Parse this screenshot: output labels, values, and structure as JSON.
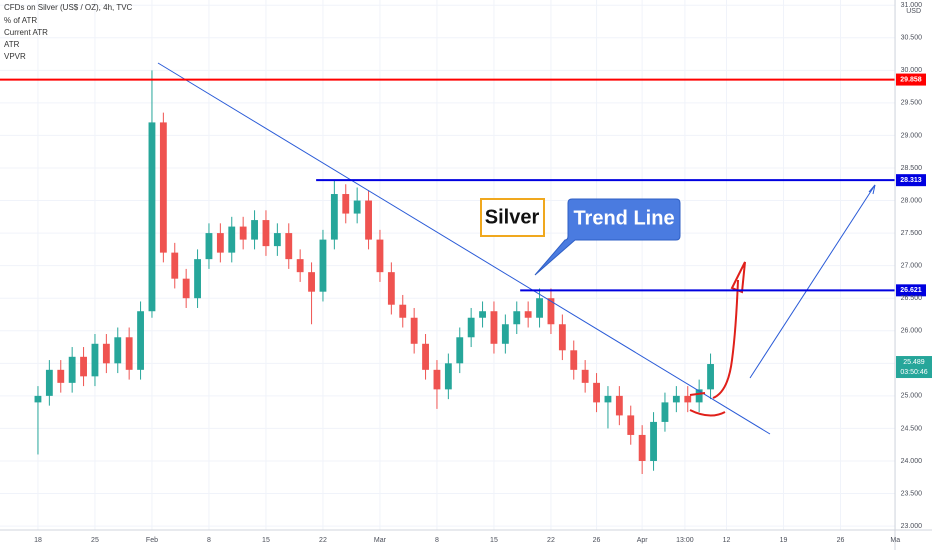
{
  "chart_data": {
    "type": "candlestick",
    "title": "CFDs on Silver (US$ / OZ), 4h, TVC",
    "indicators": [
      "% of ATR",
      "Current ATR",
      "ATR",
      "VPVR"
    ],
    "currency": "USD",
    "x": [
      0,
      1,
      2,
      3,
      4,
      5,
      6,
      7,
      8,
      9,
      10,
      11,
      12,
      13,
      14,
      15,
      16,
      17,
      18,
      19,
      20,
      21,
      22,
      23,
      24,
      25,
      26,
      27,
      28,
      29,
      30,
      31,
      32,
      33,
      34,
      35,
      36,
      37,
      38,
      39,
      40,
      41,
      42,
      43,
      44,
      45,
      46,
      47,
      48,
      49,
      50,
      51,
      52,
      53,
      54,
      55,
      56,
      57,
      58,
      59
    ],
    "open": [
      24.9,
      25.0,
      25.4,
      25.2,
      25.6,
      25.3,
      25.8,
      25.5,
      25.9,
      25.4,
      26.3,
      29.2,
      27.2,
      26.8,
      26.5,
      27.1,
      27.5,
      27.2,
      27.6,
      27.4,
      27.7,
      27.3,
      27.5,
      27.1,
      26.9,
      26.6,
      27.4,
      28.1,
      27.8,
      28.0,
      27.4,
      26.9,
      26.4,
      26.2,
      25.8,
      25.4,
      25.1,
      25.5,
      25.9,
      26.2,
      26.3,
      25.8,
      26.1,
      26.3,
      26.2,
      26.5,
      26.1,
      25.7,
      25.4,
      25.2,
      24.9,
      25.0,
      24.7,
      24.4,
      24.0,
      24.6,
      24.9,
      25.0,
      24.9,
      25.1
    ],
    "high": [
      25.15,
      25.55,
      25.55,
      25.75,
      25.75,
      25.95,
      25.95,
      26.05,
      26.05,
      26.45,
      30.0,
      29.35,
      27.35,
      26.95,
      27.25,
      27.65,
      27.65,
      27.75,
      27.75,
      27.85,
      27.85,
      27.65,
      27.65,
      27.25,
      27.05,
      27.55,
      28.3,
      28.25,
      28.2,
      28.15,
      27.55,
      27.05,
      26.55,
      26.35,
      25.95,
      25.55,
      25.65,
      26.05,
      26.35,
      26.45,
      26.45,
      26.25,
      26.45,
      26.45,
      26.65,
      26.65,
      26.25,
      25.85,
      25.55,
      25.35,
      25.15,
      25.15,
      24.85,
      24.55,
      24.75,
      25.05,
      25.15,
      25.15,
      25.25,
      25.65
    ],
    "low": [
      24.1,
      24.85,
      25.05,
      25.05,
      25.15,
      25.15,
      25.35,
      25.35,
      25.25,
      25.25,
      26.2,
      27.05,
      26.65,
      26.35,
      26.35,
      26.95,
      27.05,
      27.05,
      27.25,
      27.25,
      27.15,
      27.15,
      26.95,
      26.75,
      26.1,
      26.45,
      27.25,
      27.65,
      27.65,
      27.25,
      26.75,
      26.25,
      26.05,
      25.65,
      25.25,
      24.8,
      24.95,
      25.35,
      25.75,
      26.05,
      25.65,
      25.65,
      25.95,
      26.05,
      26.05,
      25.95,
      25.55,
      25.25,
      25.05,
      24.75,
      24.5,
      24.55,
      24.25,
      23.8,
      23.85,
      24.45,
      24.75,
      24.75,
      24.75,
      24.95
    ],
    "close": [
      25.0,
      25.4,
      25.2,
      25.6,
      25.3,
      25.8,
      25.5,
      25.9,
      25.4,
      26.3,
      29.2,
      27.2,
      26.8,
      26.5,
      27.1,
      27.5,
      27.2,
      27.6,
      27.4,
      27.7,
      27.3,
      27.5,
      27.1,
      26.9,
      26.6,
      27.4,
      28.1,
      27.8,
      28.0,
      27.4,
      26.9,
      26.4,
      26.2,
      25.8,
      25.4,
      25.1,
      25.5,
      25.9,
      26.2,
      26.3,
      25.8,
      26.1,
      26.3,
      26.2,
      26.5,
      26.1,
      25.7,
      25.4,
      25.2,
      24.9,
      25.0,
      24.7,
      24.4,
      24.0,
      24.6,
      24.9,
      25.0,
      24.9,
      25.1,
      25.489
    ],
    "up_color": "#26a69a",
    "down_color": "#ef5350",
    "xlim": [
      -3.33,
      75.18
    ],
    "xticks": [
      {
        "value": 0,
        "label": "18"
      },
      {
        "value": 5,
        "label": "25"
      },
      {
        "value": 10,
        "label": "Feb"
      },
      {
        "value": 15,
        "label": "8"
      },
      {
        "value": 20,
        "label": "15"
      },
      {
        "value": 25,
        "label": "22"
      },
      {
        "value": 30,
        "label": "Mar"
      },
      {
        "value": 35,
        "label": "8"
      },
      {
        "value": 40,
        "label": "15"
      },
      {
        "value": 45,
        "label": "22"
      },
      {
        "value": 49,
        "label": "26"
      },
      {
        "value": 53,
        "label": "Apr"
      },
      {
        "value": 56.75,
        "label": "13:00"
      },
      {
        "value": 60.4,
        "label": "12"
      },
      {
        "value": 65.4,
        "label": "19"
      },
      {
        "value": 70.4,
        "label": "26"
      },
      {
        "value": 75.2,
        "label": "Ma"
      }
    ],
    "ylim": [
      22.94,
      31.08
    ],
    "yticks": [
      {
        "value": 23,
        "label": "23.000"
      },
      {
        "value": 23.5,
        "label": "23.500"
      },
      {
        "value": 24,
        "label": "24.000"
      },
      {
        "value": 24.5,
        "label": "24.500"
      },
      {
        "value": 25,
        "label": "25.000"
      },
      {
        "value": 25.5,
        "label": "25.500"
      },
      {
        "value": 26,
        "label": "26.000"
      },
      {
        "value": 26.5,
        "label": "26.500"
      },
      {
        "value": 27,
        "label": "27.000"
      },
      {
        "value": 27.5,
        "label": "27.500"
      },
      {
        "value": 28,
        "label": "28.000"
      },
      {
        "value": 28.5,
        "label": "28.500"
      },
      {
        "value": 29,
        "label": "29.000"
      },
      {
        "value": 29.5,
        "label": "29.500"
      },
      {
        "value": 30,
        "label": "30.000"
      },
      {
        "value": 30.5,
        "label": "30.500"
      },
      {
        "value": 31,
        "label": "31.000"
      }
    ],
    "grid": true,
    "hlines": [
      {
        "value": 29.858,
        "label": "29.858",
        "color": "#ff0000"
      },
      {
        "value": 28.313,
        "label": "28.313",
        "color": "#0000e0",
        "from": 24.4
      },
      {
        "value": 26.621,
        "label": "26.621",
        "color": "#0000e0",
        "from": 42.3
      }
    ],
    "last_price": {
      "value": 25.489,
      "label": "25.489",
      "countdown": "03:50:46"
    },
    "annotations": [
      "Silver",
      "Trend Line"
    ]
  }
}
